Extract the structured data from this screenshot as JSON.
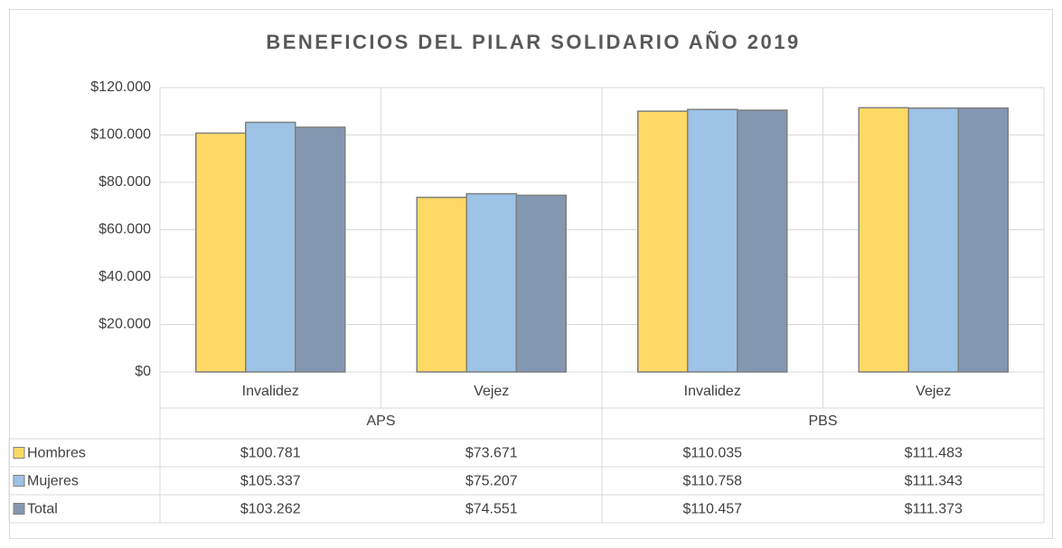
{
  "chart_data": {
    "type": "bar",
    "title": "BENEFICIOS DEL PILAR SOLIDARIO AÑO 2019",
    "groups": [
      {
        "name": "APS",
        "categories": [
          "Invalidez",
          "Vejez"
        ]
      },
      {
        "name": "PBS",
        "categories": [
          "Invalidez",
          "Vejez"
        ]
      }
    ],
    "series": [
      {
        "name": "Hombres",
        "color": "#FFD966",
        "values": [
          100781,
          73671,
          110035,
          111483
        ],
        "value_labels": [
          "$100.781",
          "$73.671",
          "$110.035",
          "$111.483"
        ]
      },
      {
        "name": "Mujeres",
        "color": "#9DC3E6",
        "values": [
          105337,
          75207,
          110758,
          111343
        ],
        "value_labels": [
          "$105.337",
          "$75.207",
          "$110.758",
          "$111.343"
        ]
      },
      {
        "name": "Total",
        "color": "#8497B0",
        "values": [
          103262,
          74551,
          110457,
          111373
        ],
        "value_labels": [
          "$103.262",
          "$74.551",
          "$110.457",
          "$111.373"
        ]
      }
    ],
    "ylim": [
      0,
      120000
    ],
    "yticks": [
      {
        "value": 0,
        "label": "$0"
      },
      {
        "value": 20000,
        "label": "$20.000"
      },
      {
        "value": 40000,
        "label": "$40.000"
      },
      {
        "value": 60000,
        "label": "$60.000"
      },
      {
        "value": 80000,
        "label": "$80.000"
      },
      {
        "value": 100000,
        "label": "$100.000"
      },
      {
        "value": 120000,
        "label": "$120.000"
      }
    ],
    "grid": true
  }
}
